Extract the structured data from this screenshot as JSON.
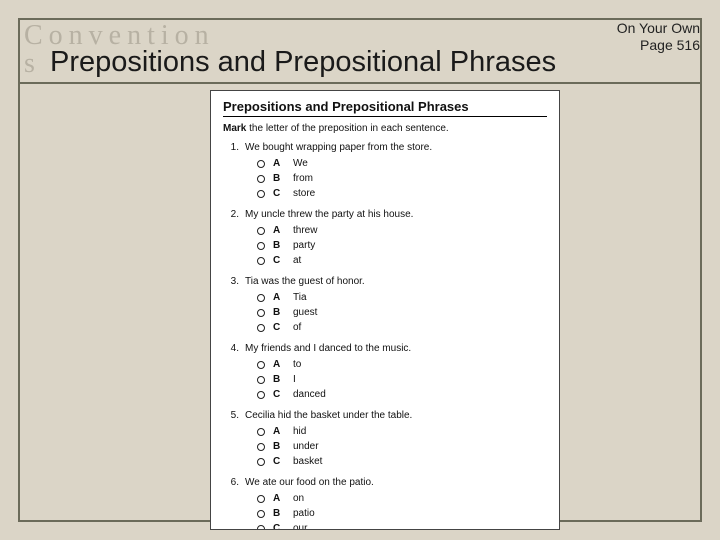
{
  "header": {
    "convention_line1": "Convention",
    "convention_line2": "s",
    "top_right_line1": "On Your Own",
    "top_right_line2": "Page 516",
    "main_title": "Prepositions and Prepositional Phrases"
  },
  "worksheet": {
    "title": "Prepositions and Prepositional Phrases",
    "instruction_bold": "Mark",
    "instruction_rest": " the letter of the preposition in each sentence.",
    "questions": [
      {
        "num": "1.",
        "text": "We bought wrapping paper from the store.",
        "options": [
          {
            "letter": "A",
            "text": "We"
          },
          {
            "letter": "B",
            "text": "from"
          },
          {
            "letter": "C",
            "text": "store"
          }
        ]
      },
      {
        "num": "2.",
        "text": "My uncle threw the party at his house.",
        "options": [
          {
            "letter": "A",
            "text": "threw"
          },
          {
            "letter": "B",
            "text": "party"
          },
          {
            "letter": "C",
            "text": "at"
          }
        ]
      },
      {
        "num": "3.",
        "text": "Tia was the guest of honor.",
        "options": [
          {
            "letter": "A",
            "text": "Tia"
          },
          {
            "letter": "B",
            "text": "guest"
          },
          {
            "letter": "C",
            "text": "of"
          }
        ]
      },
      {
        "num": "4.",
        "text": "My friends and I danced to the music.",
        "options": [
          {
            "letter": "A",
            "text": "to"
          },
          {
            "letter": "B",
            "text": "I"
          },
          {
            "letter": "C",
            "text": "danced"
          }
        ]
      },
      {
        "num": "5.",
        "text": "Cecilia hid the basket under the table.",
        "options": [
          {
            "letter": "A",
            "text": "hid"
          },
          {
            "letter": "B",
            "text": "under"
          },
          {
            "letter": "C",
            "text": "basket"
          }
        ]
      },
      {
        "num": "6.",
        "text": "We ate our food on the patio.",
        "options": [
          {
            "letter": "A",
            "text": "on"
          },
          {
            "letter": "B",
            "text": "patio"
          },
          {
            "letter": "C",
            "text": "our"
          }
        ]
      }
    ]
  },
  "colors": {
    "slide_bg": "#dbd5c7",
    "frame_border": "#6b6b5a",
    "faded_text": "#b7b1a3",
    "worksheet_bg": "#ffffff"
  }
}
